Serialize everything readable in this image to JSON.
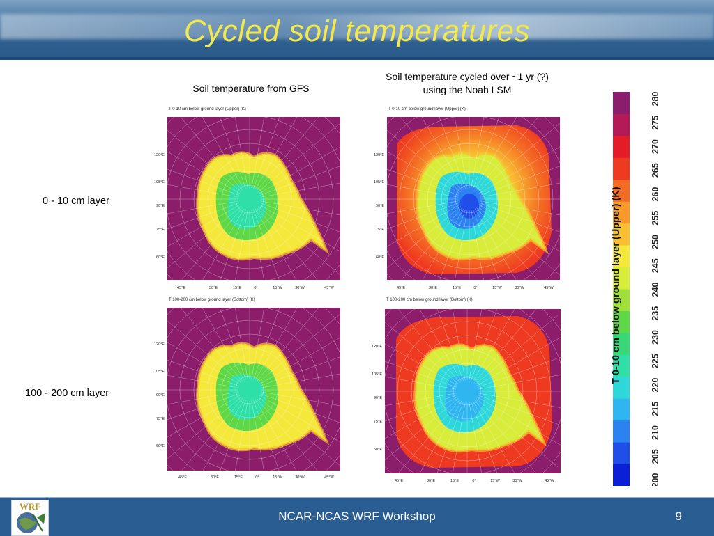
{
  "slide": {
    "title": "Cycled soil temperatures",
    "col_gfs": "Soil temperature from GFS",
    "col_cycled_line1": "Soil temperature cycled over ~1 yr (?)",
    "col_cycled_line2": "using the Noah LSM",
    "row_top": "0 - 10 cm layer",
    "row_bottom": "100 - 200 cm layer"
  },
  "panels": {
    "upper_title": "T 0-10 cm below ground layer (Upper)   (K)",
    "bottom_title": "T 100-200 cm below ground layer (Bottom)   (K)",
    "y_ticks": [
      "120°E",
      "105°E",
      "90°E",
      "75°E",
      "60°E"
    ],
    "x_ticks": [
      "45°E",
      "30°E",
      "15°E",
      "0°",
      "15°W",
      "30°W",
      "45°W"
    ]
  },
  "colorbar": {
    "title": "T 0-10 cm below ground layer (Upper)   (K)",
    "ticks": [
      "200",
      "205",
      "210",
      "215",
      "220",
      "225",
      "230",
      "235",
      "240",
      "245",
      "250",
      "255",
      "260",
      "265",
      "270",
      "275",
      "280"
    ],
    "colors": [
      "#0b1fd6",
      "#1f4fe8",
      "#2b82f0",
      "#2fb6f0",
      "#2fd8d8",
      "#2ee0a8",
      "#38d878",
      "#5fd848",
      "#9fe038",
      "#d8ec3a",
      "#f4e83a",
      "#f8c030",
      "#f89a2a",
      "#f46c24",
      "#ee3a20",
      "#e41c2a",
      "#b41a58",
      "#8a1d6e"
    ]
  },
  "footer": {
    "text": "NCAR-NCAS WRF Workshop",
    "page": "9",
    "logo": "WRF"
  },
  "colors": {
    "title": "#f2e94e",
    "ocean_purple": "#8c1d6a",
    "footer_blue": "#2a5d92"
  }
}
